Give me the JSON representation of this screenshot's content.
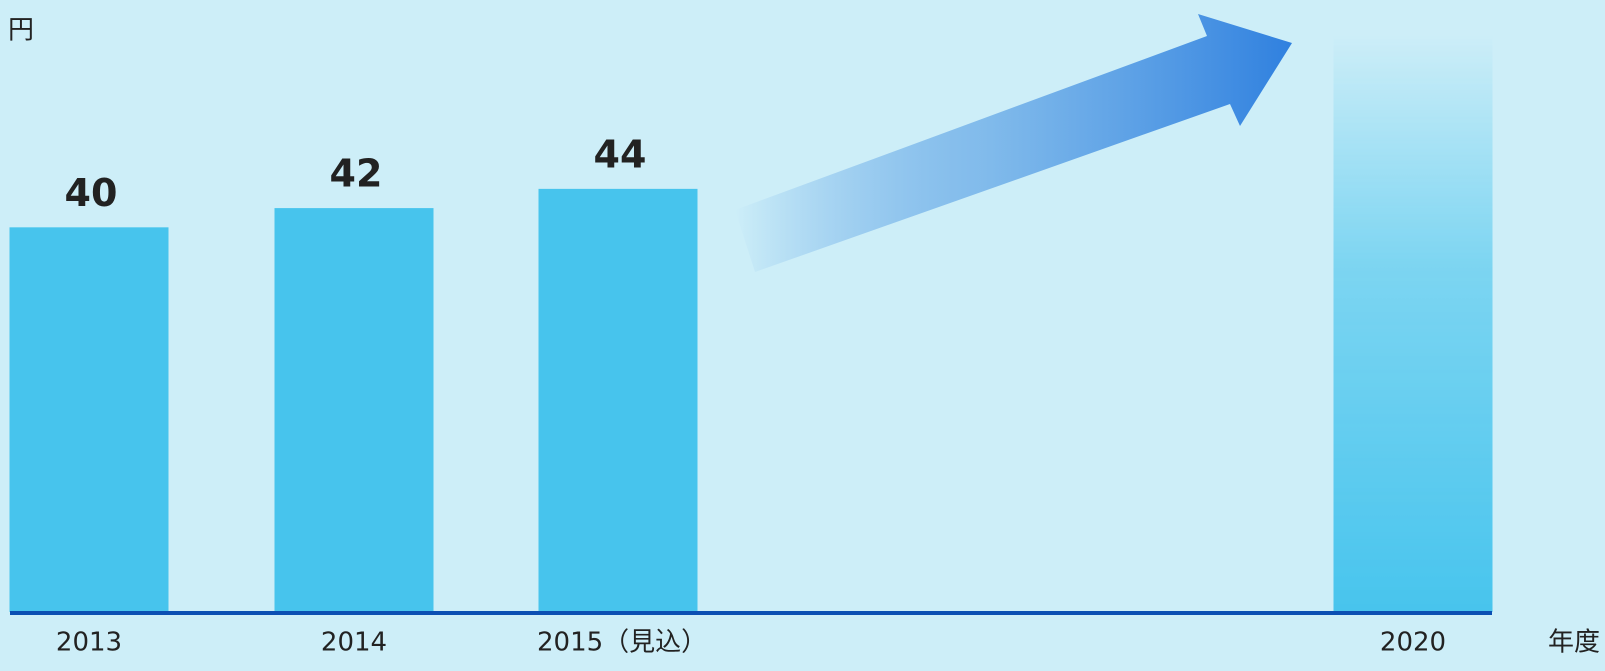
{
  "chart_data": {
    "type": "bar",
    "y_label": "円",
    "x_label": "年度",
    "categories": [
      "2013",
      "2014",
      "2015（見込）",
      "2020"
    ],
    "values": [
      40,
      42,
      44,
      60
    ],
    "value_labels": [
      "40",
      "42",
      "44",
      null
    ],
    "color": "#47c4ed",
    "ylim": [
      0,
      60
    ]
  }
}
